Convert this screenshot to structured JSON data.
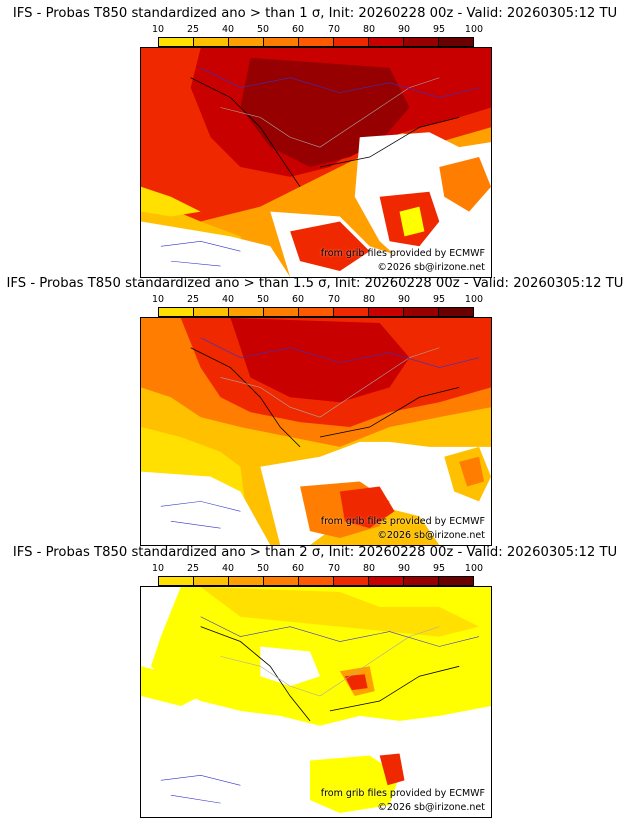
{
  "colorbar": {
    "labels": [
      "10",
      "25",
      "40",
      "50",
      "60",
      "70",
      "80",
      "90",
      "95",
      "100"
    ],
    "colors": [
      "#ffff00",
      "#ffe000",
      "#ffc000",
      "#ff9f00",
      "#ff7d00",
      "#ff5a00",
      "#f02800",
      "#c80000",
      "#960000",
      "#6a0000"
    ]
  },
  "credit": {
    "line1": "from grib files provided by ECMWF",
    "line2": "©2026 sb@irizone.net"
  },
  "panels": [
    {
      "title": "IFS - Probas T850  standardized ano > than 1 σ, Init: 20260228 00z - Valid: 20260305:12 TU"
    },
    {
      "title": "IFS - Probas T850  standardized ano > than 1.5 σ, Init: 20260228 00z - Valid: 20260305:12 TU"
    },
    {
      "title": "IFS - Probas T850  standardized ano > than 2 σ, Init: 20260228 00z - Valid: 20260305:12 TU"
    }
  ]
}
